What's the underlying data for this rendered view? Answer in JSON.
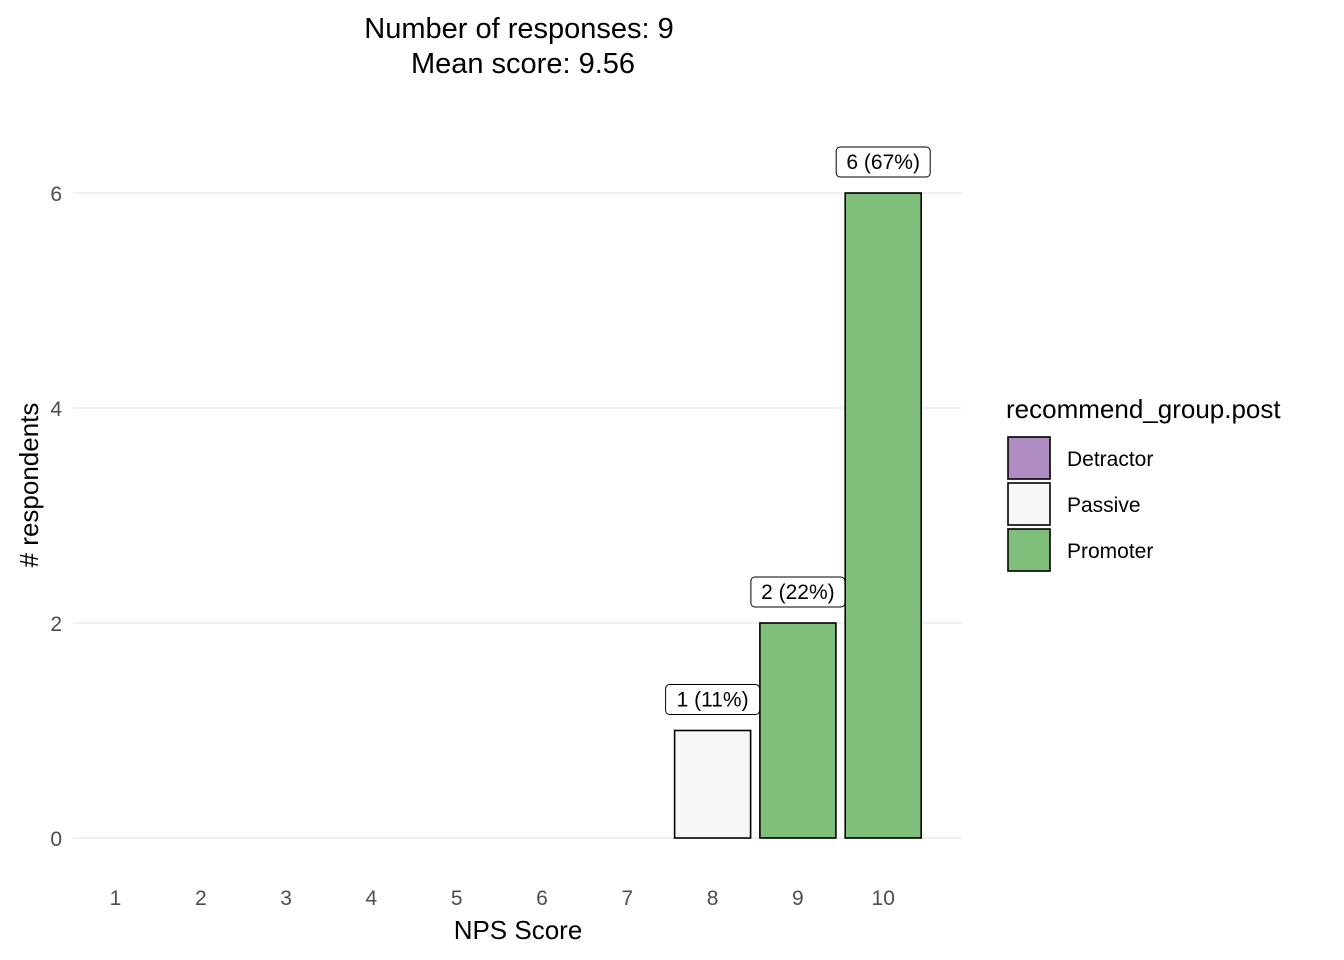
{
  "chart_data": {
    "type": "bar",
    "title_lines": [
      "Number of responses: 9",
      "Mean score: 9.56"
    ],
    "xlabel": "NPS Score",
    "ylabel": "# respondents",
    "categories": [
      "1",
      "2",
      "3",
      "4",
      "5",
      "6",
      "7",
      "8",
      "9",
      "10"
    ],
    "values": [
      0,
      0,
      0,
      0,
      0,
      0,
      0,
      1,
      2,
      6
    ],
    "groups": [
      "",
      "",
      "",
      "",
      "",
      "",
      "",
      "Passive",
      "Promoter",
      "Promoter"
    ],
    "data_labels": [
      "",
      "",
      "",
      "",
      "",
      "",
      "",
      "1 (11%)",
      "2 (22%)",
      "6 (67%)"
    ],
    "ylim": [
      0,
      6.5
    ],
    "yticks": [
      0,
      2,
      4,
      6
    ],
    "grid": true,
    "legend": {
      "title": "recommend_group.post",
      "position": "right",
      "entries": [
        {
          "name": "Detractor",
          "color": "#af8dc3"
        },
        {
          "name": "Passive",
          "color": "#f7f7f7"
        },
        {
          "name": "Promoter",
          "color": "#7fbf7b"
        }
      ]
    }
  }
}
